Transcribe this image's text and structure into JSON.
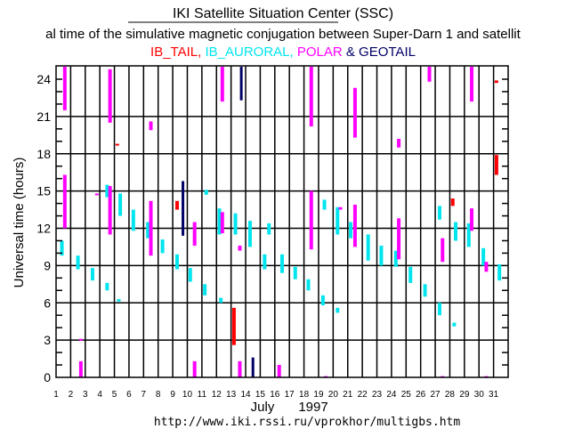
{
  "header": {
    "title": "IKI Satellite Situation Center (SSC)",
    "subtitle": "al time of the simulative magnetic conjugation between Super-Darn 1 and satellit",
    "legend": [
      {
        "label": "IB_TAIL,",
        "color": "#ff0000"
      },
      {
        "label": "IB_AURORAL,",
        "color": "#00e5ee"
      },
      {
        "label": "POLAR",
        "color": "#ff00ff"
      },
      {
        "label": "& GEOTAIL",
        "color": "#000066"
      }
    ]
  },
  "footer": {
    "month": "July",
    "year": "1997",
    "url": "http://www.iki.rssi.ru/vprokhor/multigbs.htm"
  },
  "chart_data": {
    "type": "scatter",
    "title": "IKI Satellite Situation Center (SSC)",
    "xlabel": "July 1997",
    "ylabel": "Universal time (hours)",
    "xlim": [
      1,
      32
    ],
    "ylim": [
      0,
      25
    ],
    "xticks": [
      "1",
      "2",
      "3",
      "4",
      "5",
      "6",
      "7",
      "8",
      "9",
      "10",
      "11",
      "12",
      "13",
      "14",
      "15",
      "16",
      "17",
      "18",
      "19",
      "20",
      "21",
      "22",
      "23",
      "24",
      "25",
      "26",
      "27",
      "28",
      "29",
      "30",
      "31"
    ],
    "yticks": [
      "0",
      "3",
      "6",
      "9",
      "12",
      "15",
      "18",
      "21",
      "24"
    ],
    "grid": true,
    "colors": {
      "IB_TAIL": "#ff0000",
      "IB_AURORAL": "#00e5ee",
      "POLAR": "#ff00ff",
      "GEOTAIL": "#000066"
    },
    "segments": [
      {
        "day": 1.4,
        "from": 9.8,
        "to": 11.0,
        "series": "IB_AURORAL"
      },
      {
        "day": 1.6,
        "from": 21.5,
        "to": 25.0,
        "series": "POLAR"
      },
      {
        "day": 1.6,
        "from": 12.0,
        "to": 16.3,
        "series": "POLAR"
      },
      {
        "day": 2.5,
        "from": 8.7,
        "to": 9.8,
        "series": "IB_AURORAL"
      },
      {
        "day": 2.7,
        "from": 0.0,
        "to": 1.3,
        "series": "POLAR"
      },
      {
        "day": 2.7,
        "from": 3.0,
        "to": 3.1,
        "series": "POLAR"
      },
      {
        "day": 3.5,
        "from": 7.8,
        "to": 8.8,
        "series": "IB_AURORAL"
      },
      {
        "day": 3.8,
        "from": 14.7,
        "to": 14.8,
        "series": "POLAR"
      },
      {
        "day": 4.5,
        "from": 7.0,
        "to": 7.6,
        "series": "IB_AURORAL"
      },
      {
        "day": 4.5,
        "from": 14.5,
        "to": 15.5,
        "series": "IB_AURORAL"
      },
      {
        "day": 4.7,
        "from": 20.5,
        "to": 24.8,
        "series": "POLAR"
      },
      {
        "day": 4.7,
        "from": 11.5,
        "to": 15.4,
        "series": "POLAR"
      },
      {
        "day": 5.2,
        "from": 18.7,
        "to": 18.8,
        "series": "IB_TAIL"
      },
      {
        "day": 5.3,
        "from": 6.1,
        "to": 6.3,
        "series": "IB_AURORAL"
      },
      {
        "day": 5.4,
        "from": 13.0,
        "to": 14.8,
        "series": "IB_AURORAL"
      },
      {
        "day": 6.3,
        "from": 11.8,
        "to": 13.5,
        "series": "IB_AURORAL"
      },
      {
        "day": 7.3,
        "from": 11.2,
        "to": 12.5,
        "series": "IB_AURORAL"
      },
      {
        "day": 7.5,
        "from": 9.8,
        "to": 14.2,
        "series": "POLAR"
      },
      {
        "day": 7.5,
        "from": 19.9,
        "to": 20.6,
        "series": "POLAR"
      },
      {
        "day": 8.3,
        "from": 10.0,
        "to": 11.1,
        "series": "IB_AURORAL"
      },
      {
        "day": 9.3,
        "from": 8.7,
        "to": 9.9,
        "series": "IB_AURORAL"
      },
      {
        "day": 9.3,
        "from": 13.5,
        "to": 14.2,
        "series": "IB_TAIL"
      },
      {
        "day": 9.7,
        "from": 11.4,
        "to": 15.8,
        "series": "GEOTAIL"
      },
      {
        "day": 10.2,
        "from": 7.7,
        "to": 8.8,
        "series": "IB_AURORAL"
      },
      {
        "day": 10.5,
        "from": 0.0,
        "to": 1.3,
        "series": "POLAR"
      },
      {
        "day": 10.5,
        "from": 10.6,
        "to": 12.5,
        "series": "POLAR"
      },
      {
        "day": 11.3,
        "from": 14.7,
        "to": 15.1,
        "series": "IB_AURORAL"
      },
      {
        "day": 11.2,
        "from": 6.6,
        "to": 7.5,
        "series": "IB_AURORAL"
      },
      {
        "day": 12.2,
        "from": 11.5,
        "to": 13.6,
        "series": "IB_AURORAL"
      },
      {
        "day": 12.4,
        "from": 11.6,
        "to": 13.3,
        "series": "POLAR"
      },
      {
        "day": 12.4,
        "from": 22.2,
        "to": 25.0,
        "series": "POLAR"
      },
      {
        "day": 12.3,
        "from": 6.0,
        "to": 6.4,
        "series": "IB_AURORAL"
      },
      {
        "day": 13.2,
        "from": 2.6,
        "to": 5.6,
        "series": "IB_TAIL"
      },
      {
        "day": 13.3,
        "from": 11.5,
        "to": 13.2,
        "series": "IB_AURORAL"
      },
      {
        "day": 13.6,
        "from": 0.0,
        "to": 1.3,
        "series": "POLAR"
      },
      {
        "day": 13.6,
        "from": 10.2,
        "to": 10.6,
        "series": "POLAR"
      },
      {
        "day": 13.7,
        "from": 22.3,
        "to": 25.0,
        "series": "GEOTAIL"
      },
      {
        "day": 14.3,
        "from": 10.5,
        "to": 12.6,
        "series": "IB_AURORAL"
      },
      {
        "day": 14.5,
        "from": 0.0,
        "to": 1.6,
        "series": "GEOTAIL"
      },
      {
        "day": 15.3,
        "from": 8.7,
        "to": 9.9,
        "series": "IB_AURORAL"
      },
      {
        "day": 15.6,
        "from": 11.5,
        "to": 12.4,
        "series": "IB_AURORAL"
      },
      {
        "day": 16.3,
        "from": 0.0,
        "to": 1.0,
        "series": "POLAR"
      },
      {
        "day": 16.5,
        "from": 8.4,
        "to": 9.9,
        "series": "IB_AURORAL"
      },
      {
        "day": 17.4,
        "from": 7.9,
        "to": 8.9,
        "series": "IB_AURORAL"
      },
      {
        "day": 18.3,
        "from": 7.0,
        "to": 7.9,
        "series": "IB_AURORAL"
      },
      {
        "day": 18.5,
        "from": 10.3,
        "to": 15.0,
        "series": "POLAR"
      },
      {
        "day": 18.5,
        "from": 20.2,
        "to": 25.0,
        "series": "POLAR"
      },
      {
        "day": 19.3,
        "from": 5.8,
        "to": 6.6,
        "series": "IB_AURORAL"
      },
      {
        "day": 19.4,
        "from": 13.5,
        "to": 14.3,
        "series": "IB_AURORAL"
      },
      {
        "day": 19.5,
        "from": 0.0,
        "to": 0.1,
        "series": "POLAR"
      },
      {
        "day": 20.3,
        "from": 5.2,
        "to": 5.6,
        "series": "IB_AURORAL"
      },
      {
        "day": 20.3,
        "from": 11.5,
        "to": 13.7,
        "series": "IB_AURORAL"
      },
      {
        "day": 20.5,
        "from": 13.5,
        "to": 13.7,
        "series": "POLAR"
      },
      {
        "day": 21.2,
        "from": 11.2,
        "to": 12.5,
        "series": "IB_AURORAL"
      },
      {
        "day": 21.5,
        "from": 10.5,
        "to": 13.9,
        "series": "POLAR"
      },
      {
        "day": 21.5,
        "from": 19.3,
        "to": 23.3,
        "series": "POLAR"
      },
      {
        "day": 22.4,
        "from": 9.4,
        "to": 11.5,
        "series": "IB_AURORAL"
      },
      {
        "day": 23.3,
        "from": 9.0,
        "to": 10.6,
        "series": "IB_AURORAL"
      },
      {
        "day": 24.3,
        "from": 8.9,
        "to": 10.2,
        "series": "IB_AURORAL"
      },
      {
        "day": 24.5,
        "from": 9.5,
        "to": 12.8,
        "series": "POLAR"
      },
      {
        "day": 24.5,
        "from": 18.5,
        "to": 19.2,
        "series": "POLAR"
      },
      {
        "day": 25.3,
        "from": 7.6,
        "to": 8.9,
        "series": "IB_AURORAL"
      },
      {
        "day": 26.3,
        "from": 6.5,
        "to": 7.5,
        "series": "IB_AURORAL"
      },
      {
        "day": 26.6,
        "from": 23.8,
        "to": 25.0,
        "series": "POLAR"
      },
      {
        "day": 27.3,
        "from": 5.0,
        "to": 6.0,
        "series": "IB_AURORAL"
      },
      {
        "day": 27.3,
        "from": 12.7,
        "to": 13.8,
        "series": "IB_AURORAL"
      },
      {
        "day": 27.5,
        "from": 9.3,
        "to": 11.2,
        "series": "POLAR"
      },
      {
        "day": 27.5,
        "from": 0.0,
        "to": 0.1,
        "series": "POLAR"
      },
      {
        "day": 28.2,
        "from": 13.8,
        "to": 14.4,
        "series": "IB_TAIL"
      },
      {
        "day": 28.3,
        "from": 4.1,
        "to": 4.4,
        "series": "IB_AURORAL"
      },
      {
        "day": 28.4,
        "from": 11.0,
        "to": 12.5,
        "series": "IB_AURORAL"
      },
      {
        "day": 29.3,
        "from": 10.5,
        "to": 12.4,
        "series": "IB_AURORAL"
      },
      {
        "day": 29.5,
        "from": 11.8,
        "to": 13.6,
        "series": "POLAR"
      },
      {
        "day": 29.5,
        "from": 22.2,
        "to": 25.0,
        "series": "POLAR"
      },
      {
        "day": 30.3,
        "from": 9.0,
        "to": 10.4,
        "series": "IB_AURORAL"
      },
      {
        "day": 30.5,
        "from": 8.5,
        "to": 9.3,
        "series": "POLAR"
      },
      {
        "day": 30.5,
        "from": 0.0,
        "to": 0.1,
        "series": "POLAR"
      },
      {
        "day": 31.4,
        "from": 7.8,
        "to": 9.1,
        "series": "IB_AURORAL"
      },
      {
        "day": 31.2,
        "from": 16.3,
        "to": 17.9,
        "series": "IB_TAIL"
      },
      {
        "day": 31.2,
        "from": 23.7,
        "to": 23.9,
        "series": "IB_TAIL"
      }
    ]
  }
}
